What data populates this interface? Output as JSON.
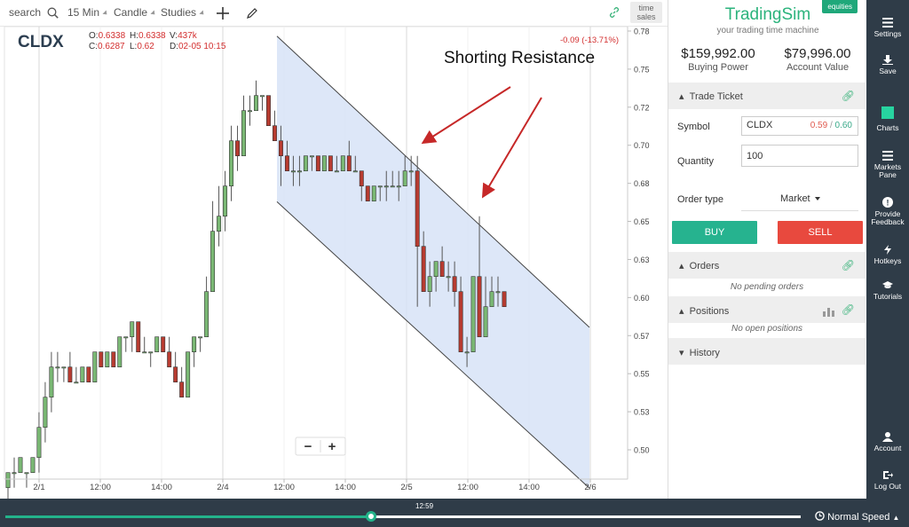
{
  "toolbar": {
    "search_placeholder": "search",
    "interval": "15 Min",
    "chart_type": "Candle",
    "studies": "Studies",
    "time_sales_1": "time",
    "time_sales_2": "sales"
  },
  "chart": {
    "symbol": "CLDX",
    "ohlc": {
      "o_label": "O:",
      "o": "0.6338",
      "h_label": "H:",
      "h": "0.6338",
      "v_label": "V:",
      "v": "437k",
      "c_label": "C:",
      "c": "0.6287",
      "l_label": "L:",
      "l": "0.62",
      "d_label": "D:",
      "d": "02-05 10:15"
    },
    "change": "-0.09 (-13.71%)",
    "annotation": "Shorting Resistance",
    "zoom_out": "−",
    "zoom_in": "+",
    "colors": {
      "up": "#7ab874",
      "down": "#b73b30",
      "channel": "#d7e3f7",
      "arrow": "#c62828"
    }
  },
  "chart_data": {
    "type": "candlestick",
    "x_tick_labels": [
      "2/1",
      "12:00",
      "14:00",
      "2/4",
      "12:00",
      "14:00",
      "2/5",
      "12:00",
      "14:00",
      "2/6"
    ],
    "y_tick_labels": [
      "0.78",
      "0.75",
      "0.72",
      "0.70",
      "0.68",
      "0.65",
      "0.63",
      "0.60",
      "0.57",
      "0.55",
      "0.53",
      "0.50"
    ],
    "ylim": [
      0.4857,
      0.7857
    ],
    "candles": [
      [
        0.48,
        0.49,
        0.47,
        0.49
      ],
      [
        0.49,
        0.5,
        0.48,
        0.49
      ],
      [
        0.49,
        0.5,
        0.49,
        0.5
      ],
      [
        0.49,
        0.49,
        0.48,
        0.49
      ],
      [
        0.49,
        0.5,
        0.49,
        0.5
      ],
      [
        0.5,
        0.53,
        0.49,
        0.52
      ],
      [
        0.52,
        0.55,
        0.51,
        0.54
      ],
      [
        0.54,
        0.57,
        0.53,
        0.56
      ],
      [
        0.56,
        0.57,
        0.55,
        0.56
      ],
      [
        0.56,
        0.56,
        0.55,
        0.56
      ],
      [
        0.56,
        0.57,
        0.55,
        0.55
      ],
      [
        0.55,
        0.56,
        0.55,
        0.55
      ],
      [
        0.55,
        0.56,
        0.55,
        0.56
      ],
      [
        0.56,
        0.56,
        0.55,
        0.55
      ],
      [
        0.55,
        0.57,
        0.55,
        0.57
      ],
      [
        0.57,
        0.57,
        0.56,
        0.56
      ],
      [
        0.56,
        0.57,
        0.56,
        0.57
      ],
      [
        0.57,
        0.57,
        0.56,
        0.56
      ],
      [
        0.56,
        0.58,
        0.56,
        0.58
      ],
      [
        0.58,
        0.58,
        0.57,
        0.58
      ],
      [
        0.58,
        0.59,
        0.57,
        0.59
      ],
      [
        0.59,
        0.59,
        0.57,
        0.57
      ],
      [
        0.57,
        0.58,
        0.57,
        0.57
      ],
      [
        0.57,
        0.57,
        0.56,
        0.57
      ],
      [
        0.57,
        0.58,
        0.57,
        0.58
      ],
      [
        0.58,
        0.58,
        0.57,
        0.57
      ],
      [
        0.57,
        0.58,
        0.56,
        0.56
      ],
      [
        0.56,
        0.57,
        0.55,
        0.55
      ],
      [
        0.55,
        0.56,
        0.54,
        0.54
      ],
      [
        0.54,
        0.57,
        0.54,
        0.57
      ],
      [
        0.57,
        0.58,
        0.56,
        0.58
      ],
      [
        0.58,
        0.58,
        0.57,
        0.58
      ],
      [
        0.58,
        0.62,
        0.58,
        0.61
      ],
      [
        0.61,
        0.67,
        0.61,
        0.65
      ],
      [
        0.65,
        0.68,
        0.64,
        0.66
      ],
      [
        0.66,
        0.69,
        0.65,
        0.68
      ],
      [
        0.68,
        0.72,
        0.67,
        0.71
      ],
      [
        0.71,
        0.72,
        0.69,
        0.7
      ],
      [
        0.7,
        0.74,
        0.7,
        0.73
      ],
      [
        0.73,
        0.74,
        0.72,
        0.73
      ],
      [
        0.73,
        0.75,
        0.73,
        0.74
      ],
      [
        0.74,
        0.74,
        0.73,
        0.74
      ],
      [
        0.74,
        0.74,
        0.72,
        0.72
      ],
      [
        0.72,
        0.73,
        0.71,
        0.71
      ],
      [
        0.71,
        0.72,
        0.68,
        0.7
      ],
      [
        0.7,
        0.71,
        0.69,
        0.69
      ],
      [
        0.69,
        0.7,
        0.68,
        0.69
      ],
      [
        0.69,
        0.7,
        0.68,
        0.69
      ],
      [
        0.69,
        0.7,
        0.69,
        0.7
      ],
      [
        0.7,
        0.7,
        0.69,
        0.7
      ],
      [
        0.7,
        0.7,
        0.69,
        0.69
      ],
      [
        0.69,
        0.7,
        0.69,
        0.7
      ],
      [
        0.7,
        0.7,
        0.69,
        0.69
      ],
      [
        0.69,
        0.7,
        0.69,
        0.69
      ],
      [
        0.69,
        0.7,
        0.69,
        0.7
      ],
      [
        0.7,
        0.71,
        0.69,
        0.69
      ],
      [
        0.69,
        0.7,
        0.69,
        0.69
      ],
      [
        0.69,
        0.69,
        0.67,
        0.68
      ],
      [
        0.68,
        0.68,
        0.67,
        0.67
      ],
      [
        0.67,
        0.68,
        0.67,
        0.68
      ],
      [
        0.68,
        0.68,
        0.67,
        0.68
      ],
      [
        0.68,
        0.69,
        0.67,
        0.68
      ],
      [
        0.68,
        0.69,
        0.68,
        0.68
      ],
      [
        0.68,
        0.69,
        0.67,
        0.68
      ],
      [
        0.68,
        0.7,
        0.68,
        0.69
      ],
      [
        0.69,
        0.7,
        0.68,
        0.69
      ],
      [
        0.69,
        0.7,
        0.6,
        0.64
      ],
      [
        0.64,
        0.65,
        0.61,
        0.61
      ],
      [
        0.61,
        0.63,
        0.6,
        0.62
      ],
      [
        0.62,
        0.63,
        0.61,
        0.63
      ],
      [
        0.63,
        0.64,
        0.62,
        0.62
      ],
      [
        0.62,
        0.63,
        0.61,
        0.62
      ],
      [
        0.62,
        0.63,
        0.6,
        0.61
      ],
      [
        0.61,
        0.62,
        0.57,
        0.57
      ],
      [
        0.57,
        0.58,
        0.56,
        0.57
      ],
      [
        0.57,
        0.62,
        0.57,
        0.62
      ],
      [
        0.62,
        0.66,
        0.58,
        0.58
      ],
      [
        0.58,
        0.62,
        0.58,
        0.6
      ],
      [
        0.6,
        0.62,
        0.6,
        0.61
      ],
      [
        0.61,
        0.62,
        0.6,
        0.61
      ],
      [
        0.61,
        0.61,
        0.6,
        0.6
      ]
    ],
    "channel": {
      "upper": {
        "x0": 0.789,
        "y0": 0.7794,
        "x1": 0.864,
        "y1": 0.5863
      },
      "lower": {
        "x0": 0.789,
        "y0": 0.6696,
        "x1": 0.864,
        "y1": 0.4797
      }
    }
  },
  "panel": {
    "brand": "TradingSim",
    "tagline": "your trading time machine",
    "badge": "equities",
    "buying_power_value": "$159,992.00",
    "buying_power_label": "Buying Power",
    "account_value_value": "$79,996.00",
    "account_value_label": "Account Value",
    "trade_ticket": "Trade Ticket",
    "symbol_label": "Symbol",
    "symbol_value": "CLDX",
    "bid": "0.59",
    "sep": "/",
    "ask": "0.60",
    "quantity_label": "Quantity",
    "quantity_value": "100",
    "order_type_label": "Order type",
    "order_type_value": "Market",
    "buy": "BUY",
    "sell": "SELL",
    "orders": "Orders",
    "orders_empty": "No pending orders",
    "positions": "Positions",
    "positions_empty": "No open positions",
    "history": "History"
  },
  "sidebar": {
    "settings": "Settings",
    "save": "Save",
    "charts": "Charts",
    "markets_1": "Markets",
    "markets_2": "Pane",
    "feedback_1": "Provide",
    "feedback_2": "Feedback",
    "hotkeys": "Hotkeys",
    "tutorials": "Tutorials",
    "account": "Account",
    "logout": "Log Out"
  },
  "bottom": {
    "time": "12:59",
    "progress": 0.46,
    "speed": "Normal Speed"
  }
}
